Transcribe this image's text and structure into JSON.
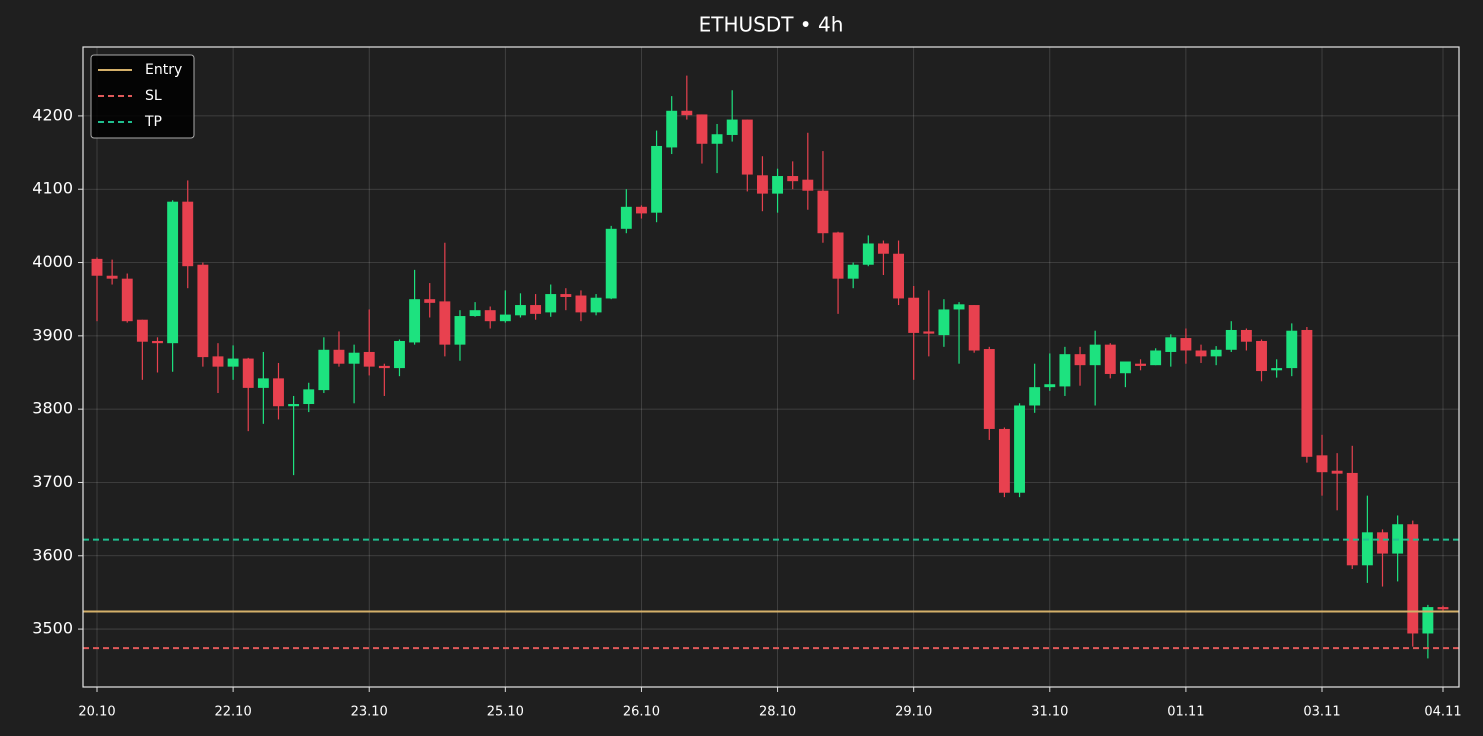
{
  "chart_data": {
    "type": "candlestick",
    "title": "ETHUSDT • 4h",
    "categories": [
      "20.10",
      null,
      null,
      null,
      null,
      null,
      null,
      null,
      null,
      "22.10",
      null,
      null,
      null,
      null,
      null,
      null,
      null,
      null,
      "23.10",
      null,
      null,
      null,
      null,
      null,
      null,
      null,
      null,
      "25.10",
      null,
      null,
      null,
      null,
      null,
      null,
      null,
      null,
      "26.10",
      null,
      null,
      null,
      null,
      null,
      null,
      null,
      null,
      "28.10",
      null,
      null,
      null,
      null,
      null,
      null,
      null,
      null,
      "29.10",
      null,
      null,
      null,
      null,
      null,
      null,
      null,
      null,
      "31.10",
      null,
      null,
      null,
      null,
      null,
      null,
      null,
      null,
      "01.11",
      null,
      null,
      null,
      null,
      null,
      null,
      null,
      null,
      "03.11",
      null,
      null,
      null,
      null,
      null,
      null,
      null,
      "04.11"
    ],
    "open": [
      4005,
      3982,
      3978,
      3922,
      3893,
      3890,
      4083,
      3997,
      3872,
      3858,
      3869,
      3829,
      3842,
      3804,
      3807,
      3826,
      3881,
      3862,
      3878,
      3859,
      3856,
      3891,
      3950,
      3947,
      3888,
      3927,
      3935,
      3920,
      3928,
      3942,
      3932,
      3957,
      3955,
      3932,
      3951,
      4046,
      4076,
      4068,
      4157,
      4207,
      4202,
      4162,
      4174,
      4195,
      4119,
      4094,
      4118,
      4113,
      4098,
      4041,
      3978,
      3997,
      4026,
      4012,
      3952,
      3906,
      3901,
      3936,
      3942,
      3882,
      3773,
      3686,
      3805,
      3830,
      3831,
      3875,
      3860,
      3888,
      3849,
      3862,
      3860,
      3878,
      3897,
      3880,
      3872,
      3881,
      3908,
      3893,
      3853,
      3856,
      3908,
      3737,
      3716,
      3713,
      3587,
      3632,
      3603,
      3643,
      3494,
      3530
    ],
    "high": [
      4007,
      4004,
      3985,
      3922,
      3898,
      4085,
      4112,
      4000,
      3890,
      3887,
      3870,
      3878,
      3863,
      3818,
      3836,
      3898,
      3906,
      3888,
      3936,
      3862,
      3895,
      3990,
      3972,
      4027,
      3935,
      3946,
      3940,
      3962,
      3958,
      3957,
      3970,
      3965,
      3962,
      3957,
      4050,
      4100,
      4078,
      4180,
      4227,
      4255,
      4202,
      4189,
      4235,
      4195,
      4145,
      4128,
      4138,
      4177,
      4152,
      4042,
      4000,
      4037,
      4030,
      4030,
      3968,
      3962,
      3950,
      3946,
      3942,
      3885,
      3775,
      3808,
      3862,
      3876,
      3885,
      3885,
      3907,
      3890,
      3865,
      3868,
      3883,
      3902,
      3910,
      3888,
      3886,
      3920,
      3910,
      3895,
      3868,
      3917,
      3912,
      3765,
      3740,
      3750,
      3682,
      3636,
      3655,
      3648,
      3533,
      3532
    ],
    "low": [
      3920,
      3970,
      3918,
      3840,
      3850,
      3851,
      3965,
      3858,
      3822,
      3840,
      3770,
      3780,
      3786,
      3710,
      3796,
      3822,
      3858,
      3808,
      3846,
      3818,
      3845,
      3888,
      3925,
      3872,
      3866,
      3926,
      3910,
      3918,
      3925,
      3922,
      3926,
      3935,
      3920,
      3928,
      3950,
      4040,
      4060,
      4055,
      4148,
      4195,
      4135,
      4122,
      4165,
      4097,
      4070,
      4068,
      4100,
      4072,
      4027,
      3930,
      3965,
      3995,
      3983,
      3942,
      3840,
      3872,
      3885,
      3862,
      3877,
      3758,
      3680,
      3680,
      3795,
      3825,
      3818,
      3832,
      3805,
      3842,
      3830,
      3853,
      3860,
      3858,
      3862,
      3863,
      3860,
      3878,
      3880,
      3838,
      3843,
      3845,
      3727,
      3682,
      3662,
      3582,
      3563,
      3558,
      3565,
      3476,
      3460,
      3525
    ],
    "close": [
      3982,
      3978,
      3920,
      3892,
      3890,
      4083,
      3995,
      3871,
      3858,
      3869,
      3829,
      3842,
      3804,
      3807,
      3827,
      3881,
      3862,
      3877,
      3858,
      3856,
      3893,
      3950,
      3945,
      3888,
      3927,
      3935,
      3920,
      3929,
      3942,
      3930,
      3957,
      3953,
      3932,
      3952,
      4046,
      4076,
      4067,
      4159,
      4207,
      4201,
      4162,
      4175,
      4195,
      4120,
      4094,
      4118,
      4111,
      4098,
      4040,
      3978,
      3997,
      4026,
      4012,
      3951,
      3904,
      3903,
      3936,
      3943,
      3880,
      3773,
      3686,
      3805,
      3830,
      3834,
      3875,
      3860,
      3888,
      3848,
      3865,
      3859,
      3880,
      3898,
      3880,
      3872,
      3881,
      3908,
      3892,
      3852,
      3856,
      3907,
      3735,
      3714,
      3712,
      3587,
      3632,
      3603,
      3643,
      3494,
      3530,
      3527
    ],
    "up_color": "#1de27f",
    "down_color": "#e8414f",
    "lines": [
      {
        "name": "Entry",
        "value": 3524,
        "color": "#d4b06a",
        "dashed": false
      },
      {
        "name": "SL",
        "value": 3474,
        "color": "#e05a5a",
        "dashed": true
      },
      {
        "name": "TP",
        "value": 3622,
        "color": "#1fbf8f",
        "dashed": true
      }
    ],
    "legend": "upper left",
    "ylim": [
      3421,
      4294
    ],
    "yticks": [
      3500,
      3600,
      3700,
      3800,
      3900,
      4000,
      4100,
      4200
    ],
    "grid": true
  }
}
